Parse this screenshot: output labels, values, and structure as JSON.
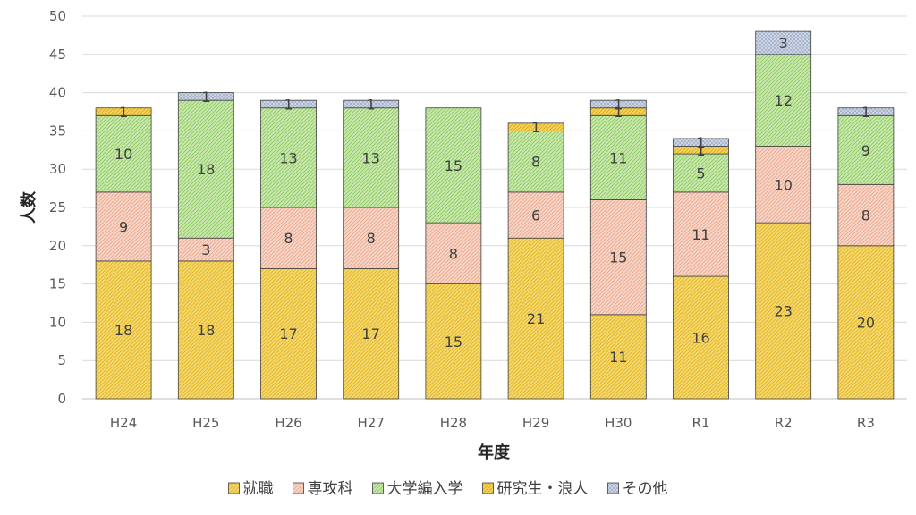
{
  "chart_data": {
    "type": "bar",
    "stacked": true,
    "title": "",
    "xlabel": "年度",
    "ylabel": "人数",
    "ylim": [
      0,
      50
    ],
    "yticks": [
      0,
      5,
      10,
      15,
      20,
      25,
      30,
      35,
      40,
      45,
      50
    ],
    "grid": true,
    "legend_position": "bottom",
    "categories": [
      "H24",
      "H25",
      "H26",
      "H27",
      "H28",
      "H29",
      "H30",
      "R1",
      "R2",
      "R3"
    ],
    "series": [
      {
        "name": "就職",
        "color": "#f5d76e",
        "stroke": "#e0b520",
        "values": [
          18,
          18,
          17,
          17,
          15,
          21,
          11,
          16,
          23,
          20
        ]
      },
      {
        "name": "専攻科",
        "color": "#f8d5c6",
        "stroke": "#e8a68c",
        "values": [
          9,
          3,
          8,
          8,
          8,
          6,
          15,
          11,
          10,
          8
        ]
      },
      {
        "name": "大学編入学",
        "color": "#c9e8b0",
        "stroke": "#8cc75a",
        "values": [
          10,
          18,
          13,
          13,
          15,
          8,
          11,
          5,
          12,
          9
        ]
      },
      {
        "name": "研究生・浪人",
        "color": "#f7d35c",
        "stroke": "#d9a816",
        "values": [
          1,
          0,
          0,
          0,
          0,
          1,
          1,
          1,
          0,
          0
        ]
      },
      {
        "name": "その他",
        "color": "#d4dceb",
        "stroke": "#9aa7bf",
        "values": [
          0,
          1,
          1,
          1,
          0,
          0,
          1,
          1,
          3,
          1
        ]
      }
    ]
  }
}
